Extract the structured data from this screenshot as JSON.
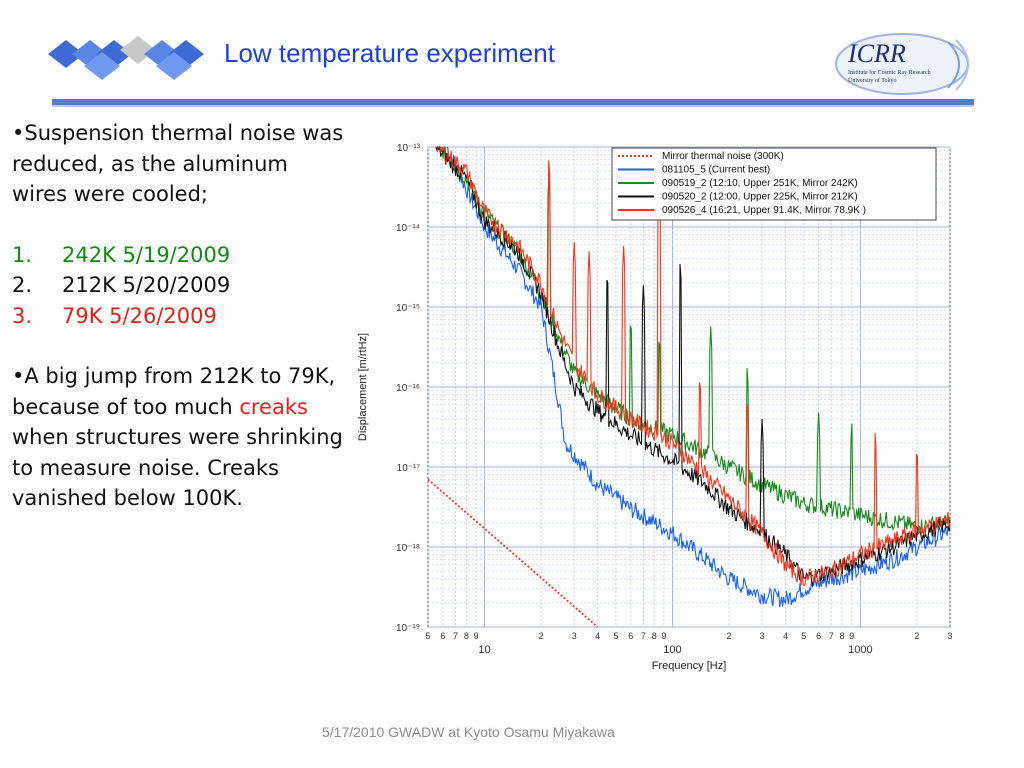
{
  "slide": {
    "title": "Low temperature experiment",
    "footer": "5/17/2010 GWADW at Kyoto Osamu Miyakawa",
    "logo_right": {
      "text": "ICRR",
      "subtitle_line1": "Institute for Cosmic Ray Research",
      "subtitle_line2": "University of Tokyo"
    },
    "colors": {
      "title": "#1f3fd6",
      "rule": "#4f7fc9",
      "green": "#0f8a12",
      "red": "#e0201b"
    }
  },
  "bullets": {
    "b1": "•Suspension thermal noise was reduced, as the aluminum wires were cooled;",
    "items": [
      {
        "num": "1.",
        "text": "242K 5/19/2009"
      },
      {
        "num": "2.",
        "text": "212K 5/20/2009"
      },
      {
        "num": "3.",
        "text": "79K 5/26/2009"
      }
    ],
    "b2_pre": "•A big jump from 212K to 79K, because of too much ",
    "b2_red": "creaks",
    "b2_post": " when structures were shrinking to measure noise. Creaks vanished below 100K."
  },
  "chart_data": {
    "type": "line",
    "xlabel": "Frequency [Hz]",
    "ylabel": "Displacement [m/rtHz]",
    "x_scale": "log",
    "y_scale": "log",
    "xlim": [
      5,
      3000
    ],
    "ylim": [
      1e-19,
      1e-13
    ],
    "grid": true,
    "legend_position": "top-right",
    "x_major_labels": [
      "10",
      "100",
      "1000"
    ],
    "x_minor_labels": [
      "5",
      "6",
      "7",
      "8",
      "9",
      "2",
      "3",
      "4",
      "5",
      "6",
      "7",
      "8",
      "9",
      "2",
      "3",
      "4",
      "5",
      "6",
      "7",
      "8",
      "9",
      "2",
      "3"
    ],
    "y_tick_labels": [
      "10⁻¹³",
      "10⁻¹⁴",
      "10⁻¹⁵",
      "10⁻¹⁶",
      "10⁻¹⁷",
      "10⁻¹⁸",
      "10⁻¹⁹"
    ],
    "series": [
      {
        "name": "Mirror thermal noise (300K)",
        "color": "#e03a2a",
        "dashed": true,
        "points": [
          [
            5,
            7e-18
          ],
          [
            40,
            1e-19
          ]
        ]
      },
      {
        "name": "081105_5 (Current best)",
        "color": "#1a63e6",
        "points": [
          [
            6.3,
            1e-13
          ],
          [
            8,
            3e-14
          ],
          [
            10,
            1e-14
          ],
          [
            15,
            3e-15
          ],
          [
            20,
            1e-15
          ],
          [
            24,
            1e-16
          ],
          [
            27,
            2e-17
          ],
          [
            40,
            6e-18
          ],
          [
            60,
            3e-18
          ],
          [
            100,
            1.5e-18
          ],
          [
            150,
            7e-19
          ],
          [
            200,
            4e-19
          ],
          [
            300,
            2.5e-19
          ],
          [
            400,
            2.2e-19
          ],
          [
            500,
            3e-19
          ],
          [
            700,
            4e-19
          ],
          [
            1000,
            5e-19
          ],
          [
            1500,
            7e-19
          ],
          [
            2000,
            1e-18
          ],
          [
            3000,
            1.6e-18
          ]
        ],
        "spikes": []
      },
      {
        "name": "090519_2 (12:10, Upper 251K, Mirror 242K)",
        "color": "#1a8a1e",
        "points": [
          [
            5.8,
            1e-13
          ],
          [
            8,
            4e-14
          ],
          [
            10,
            1.5e-14
          ],
          [
            15,
            5e-15
          ],
          [
            20,
            1.5e-15
          ],
          [
            25,
            4e-16
          ],
          [
            30,
            1.5e-16
          ],
          [
            40,
            8e-17
          ],
          [
            60,
            4e-17
          ],
          [
            100,
            2.5e-17
          ],
          [
            150,
            1.5e-17
          ],
          [
            200,
            1e-17
          ],
          [
            300,
            6e-18
          ],
          [
            500,
            3.5e-18
          ],
          [
            1000,
            2.5e-18
          ],
          [
            2000,
            1.8e-18
          ],
          [
            3000,
            2e-18
          ]
        ],
        "spikes": [
          [
            22,
            5e-14
          ],
          [
            60,
            8e-16
          ],
          [
            85,
            5e-16
          ],
          [
            160,
            6e-16
          ],
          [
            250,
            2e-16
          ],
          [
            600,
            5e-17
          ],
          [
            900,
            4e-17
          ]
        ]
      },
      {
        "name": "090520_2 (12:00, Upper 225K, Mirror 212K)",
        "color": "#111111",
        "points": [
          [
            5.5,
            1e-13
          ],
          [
            8,
            4e-14
          ],
          [
            10,
            1.2e-14
          ],
          [
            15,
            5e-15
          ],
          [
            20,
            1.5e-15
          ],
          [
            25,
            3e-16
          ],
          [
            30,
            1e-16
          ],
          [
            40,
            5e-17
          ],
          [
            60,
            2.5e-17
          ],
          [
            100,
            1.2e-17
          ],
          [
            150,
            6e-18
          ],
          [
            200,
            3e-18
          ],
          [
            300,
            1.5e-18
          ],
          [
            400,
            8e-19
          ],
          [
            500,
            4e-19
          ],
          [
            700,
            5e-19
          ],
          [
            1000,
            7e-19
          ],
          [
            1500,
            1e-18
          ],
          [
            2000,
            1.4e-18
          ],
          [
            3000,
            2e-18
          ]
        ],
        "spikes": [
          [
            45,
            3e-15
          ],
          [
            70,
            2e-15
          ],
          [
            110,
            4e-15
          ],
          [
            300,
            4e-17
          ]
        ]
      },
      {
        "name": "090526_4 (16:21, Upper 91.4K, Mirror 78.9K )",
        "color": "#f0371c",
        "points": [
          [
            5.6,
            1e-13
          ],
          [
            8,
            5e-14
          ],
          [
            10,
            1.5e-14
          ],
          [
            15,
            6e-15
          ],
          [
            20,
            2e-15
          ],
          [
            25,
            5e-16
          ],
          [
            30,
            2e-16
          ],
          [
            40,
            8e-17
          ],
          [
            60,
            4e-17
          ],
          [
            100,
            2e-17
          ],
          [
            150,
            8e-18
          ],
          [
            200,
            4e-18
          ],
          [
            300,
            1.5e-18
          ],
          [
            400,
            6e-19
          ],
          [
            500,
            4e-19
          ],
          [
            700,
            5e-19
          ],
          [
            1000,
            8e-19
          ],
          [
            1500,
            1.2e-18
          ],
          [
            2000,
            1.6e-18
          ],
          [
            3000,
            2.2e-18
          ]
        ],
        "spikes": [
          [
            22,
            8e-14
          ],
          [
            30,
            7e-15
          ],
          [
            36,
            5e-15
          ],
          [
            55,
            6e-15
          ],
          [
            85,
            1e-13
          ],
          [
            140,
            1.5e-16
          ],
          [
            250,
            8e-17
          ],
          [
            1200,
            3e-17
          ],
          [
            2000,
            2e-17
          ]
        ]
      }
    ]
  }
}
